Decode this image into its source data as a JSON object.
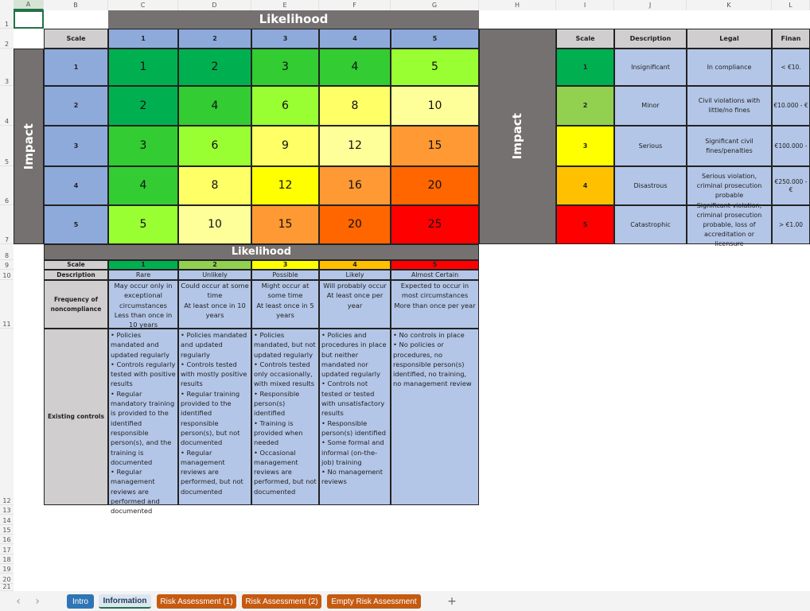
{
  "columns": [
    "A",
    "B",
    "C",
    "D",
    "E",
    "F",
    "G",
    "H",
    "I",
    "J",
    "K",
    "L"
  ],
  "rows": [
    "1",
    "2",
    "3",
    "4",
    "5",
    "6",
    "7",
    "8",
    "9",
    "10",
    "11",
    "12",
    "13",
    "14",
    "15",
    "16",
    "17",
    "18",
    "19",
    "20",
    "21"
  ],
  "matrix": {
    "likelihood_title": "Likelihood",
    "impact_title": "Impact",
    "scale_label": "Scale",
    "likelihood_scale": [
      "1",
      "2",
      "3",
      "4",
      "5"
    ],
    "impact_scale": [
      "1",
      "2",
      "3",
      "4",
      "5"
    ],
    "scores": [
      [
        "1",
        "2",
        "3",
        "4",
        "5"
      ],
      [
        "2",
        "4",
        "6",
        "8",
        "10"
      ],
      [
        "3",
        "6",
        "9",
        "12",
        "15"
      ],
      [
        "4",
        "8",
        "12",
        "16",
        "20"
      ],
      [
        "5",
        "10",
        "15",
        "20",
        "25"
      ]
    ],
    "colors": [
      [
        "#00b050",
        "#00b050",
        "#33cc33",
        "#33cc33",
        "#99ff33"
      ],
      [
        "#00b050",
        "#33cc33",
        "#99ff33",
        "#ffff66",
        "#ffff99"
      ],
      [
        "#33cc33",
        "#99ff33",
        "#ffff66",
        "#ffff99",
        "#ff9933"
      ],
      [
        "#33cc33",
        "#ffff66",
        "#ffff00",
        "#ff9933",
        "#ff6600"
      ],
      [
        "#99ff33",
        "#ffff99",
        "#ff9933",
        "#ff6600",
        "#ff0000"
      ]
    ]
  },
  "impact_table": {
    "title": "Impact",
    "headers": [
      "Scale",
      "Description",
      "Legal",
      "Finan"
    ],
    "rows": [
      {
        "scale": "1",
        "color": "#00b050",
        "description": "Insignificant",
        "legal": "In compliance",
        "financial": "< €10."
      },
      {
        "scale": "2",
        "color": "#92d050",
        "description": "Minor",
        "legal": "Civil violations with little/no fines",
        "financial": "€10.000 - €"
      },
      {
        "scale": "3",
        "color": "#ffff00",
        "description": "Serious",
        "legal": "Significant civil fines/penalties",
        "financial": "€100.000 -"
      },
      {
        "scale": "4",
        "color": "#ffc000",
        "description": "Disastrous",
        "legal": "Serious violation, criminal prosecution probable",
        "financial": "€250.000 - €"
      },
      {
        "scale": "5",
        "color": "#ff0000",
        "description": "Catastrophic",
        "legal": "Significant violation, criminal prosecution probable, loss of accreditation or licensure",
        "financial": "> €1.00"
      }
    ]
  },
  "likelihood_table": {
    "title": "Likelihood",
    "row_labels": [
      "Scale",
      "Description",
      "Frequency of noncompliance",
      "Existing controls"
    ],
    "columns": [
      {
        "scale": "1",
        "color": "#00b050",
        "description": "Rare",
        "frequency": "May occur only in exceptional circumstances\nLess than once in 10 years",
        "controls": "• Policies mandated and updated regularly\n• Controls regularly tested with positive results\n• Regular mandatory training is provided to the identified responsible person(s), and the training is documented\n• Regular management reviews are performed and documented"
      },
      {
        "scale": "2",
        "color": "#92d050",
        "description": "Unlikely",
        "frequency": "Could occur at some time\nAt least once in 10 years",
        "controls": "• Policies mandated and updated regularly\n• Controls tested with mostly positive results\n• Regular training provided to the identified responsible person(s), but not documented\n• Regular management reviews are performed, but not documented"
      },
      {
        "scale": "3",
        "color": "#ffff00",
        "description": "Possible",
        "frequency": "Might occur at some time\nAt least once in 5 years",
        "controls": "• Policies mandated, but not updated regularly\n• Controls tested only occasionally, with mixed results\n• Responsible person(s) identified\n• Training is provided when needed\n• Occasional management reviews are performed, but not documented"
      },
      {
        "scale": "4",
        "color": "#ffc000",
        "description": "Likely",
        "frequency": "Will probably occur\nAt least once per year",
        "controls": "• Policies and procedures in place but neither mandated nor updated regularly\n• Controls not tested or tested with unsatisfactory results\n• Responsible person(s) identified\n• Some formal and informal (on-the-job) training\n• No management reviews"
      },
      {
        "scale": "5",
        "color": "#ff0000",
        "description": "Almost Certain",
        "frequency": "Expected to occur in most circumstances\nMore than once per year",
        "controls": "• No controls in place\n• No policies or procedures, no responsible person(s) identified, no training, no management review"
      }
    ]
  },
  "sheet_tabs": [
    {
      "label": "Intro",
      "color": "#2e75b6",
      "active": false
    },
    {
      "label": "Information",
      "color": "#dde6f0",
      "active": true
    },
    {
      "label": "Risk Assessment (1)",
      "color": "#c55a11",
      "active": false
    },
    {
      "label": "Risk Assessment (2)",
      "color": "#c55a11",
      "active": false
    },
    {
      "label": "Empty Risk Assessment",
      "color": "#c55a11",
      "active": false
    }
  ],
  "add_sheet": "+",
  "nav_prev": "‹",
  "nav_next": "›"
}
